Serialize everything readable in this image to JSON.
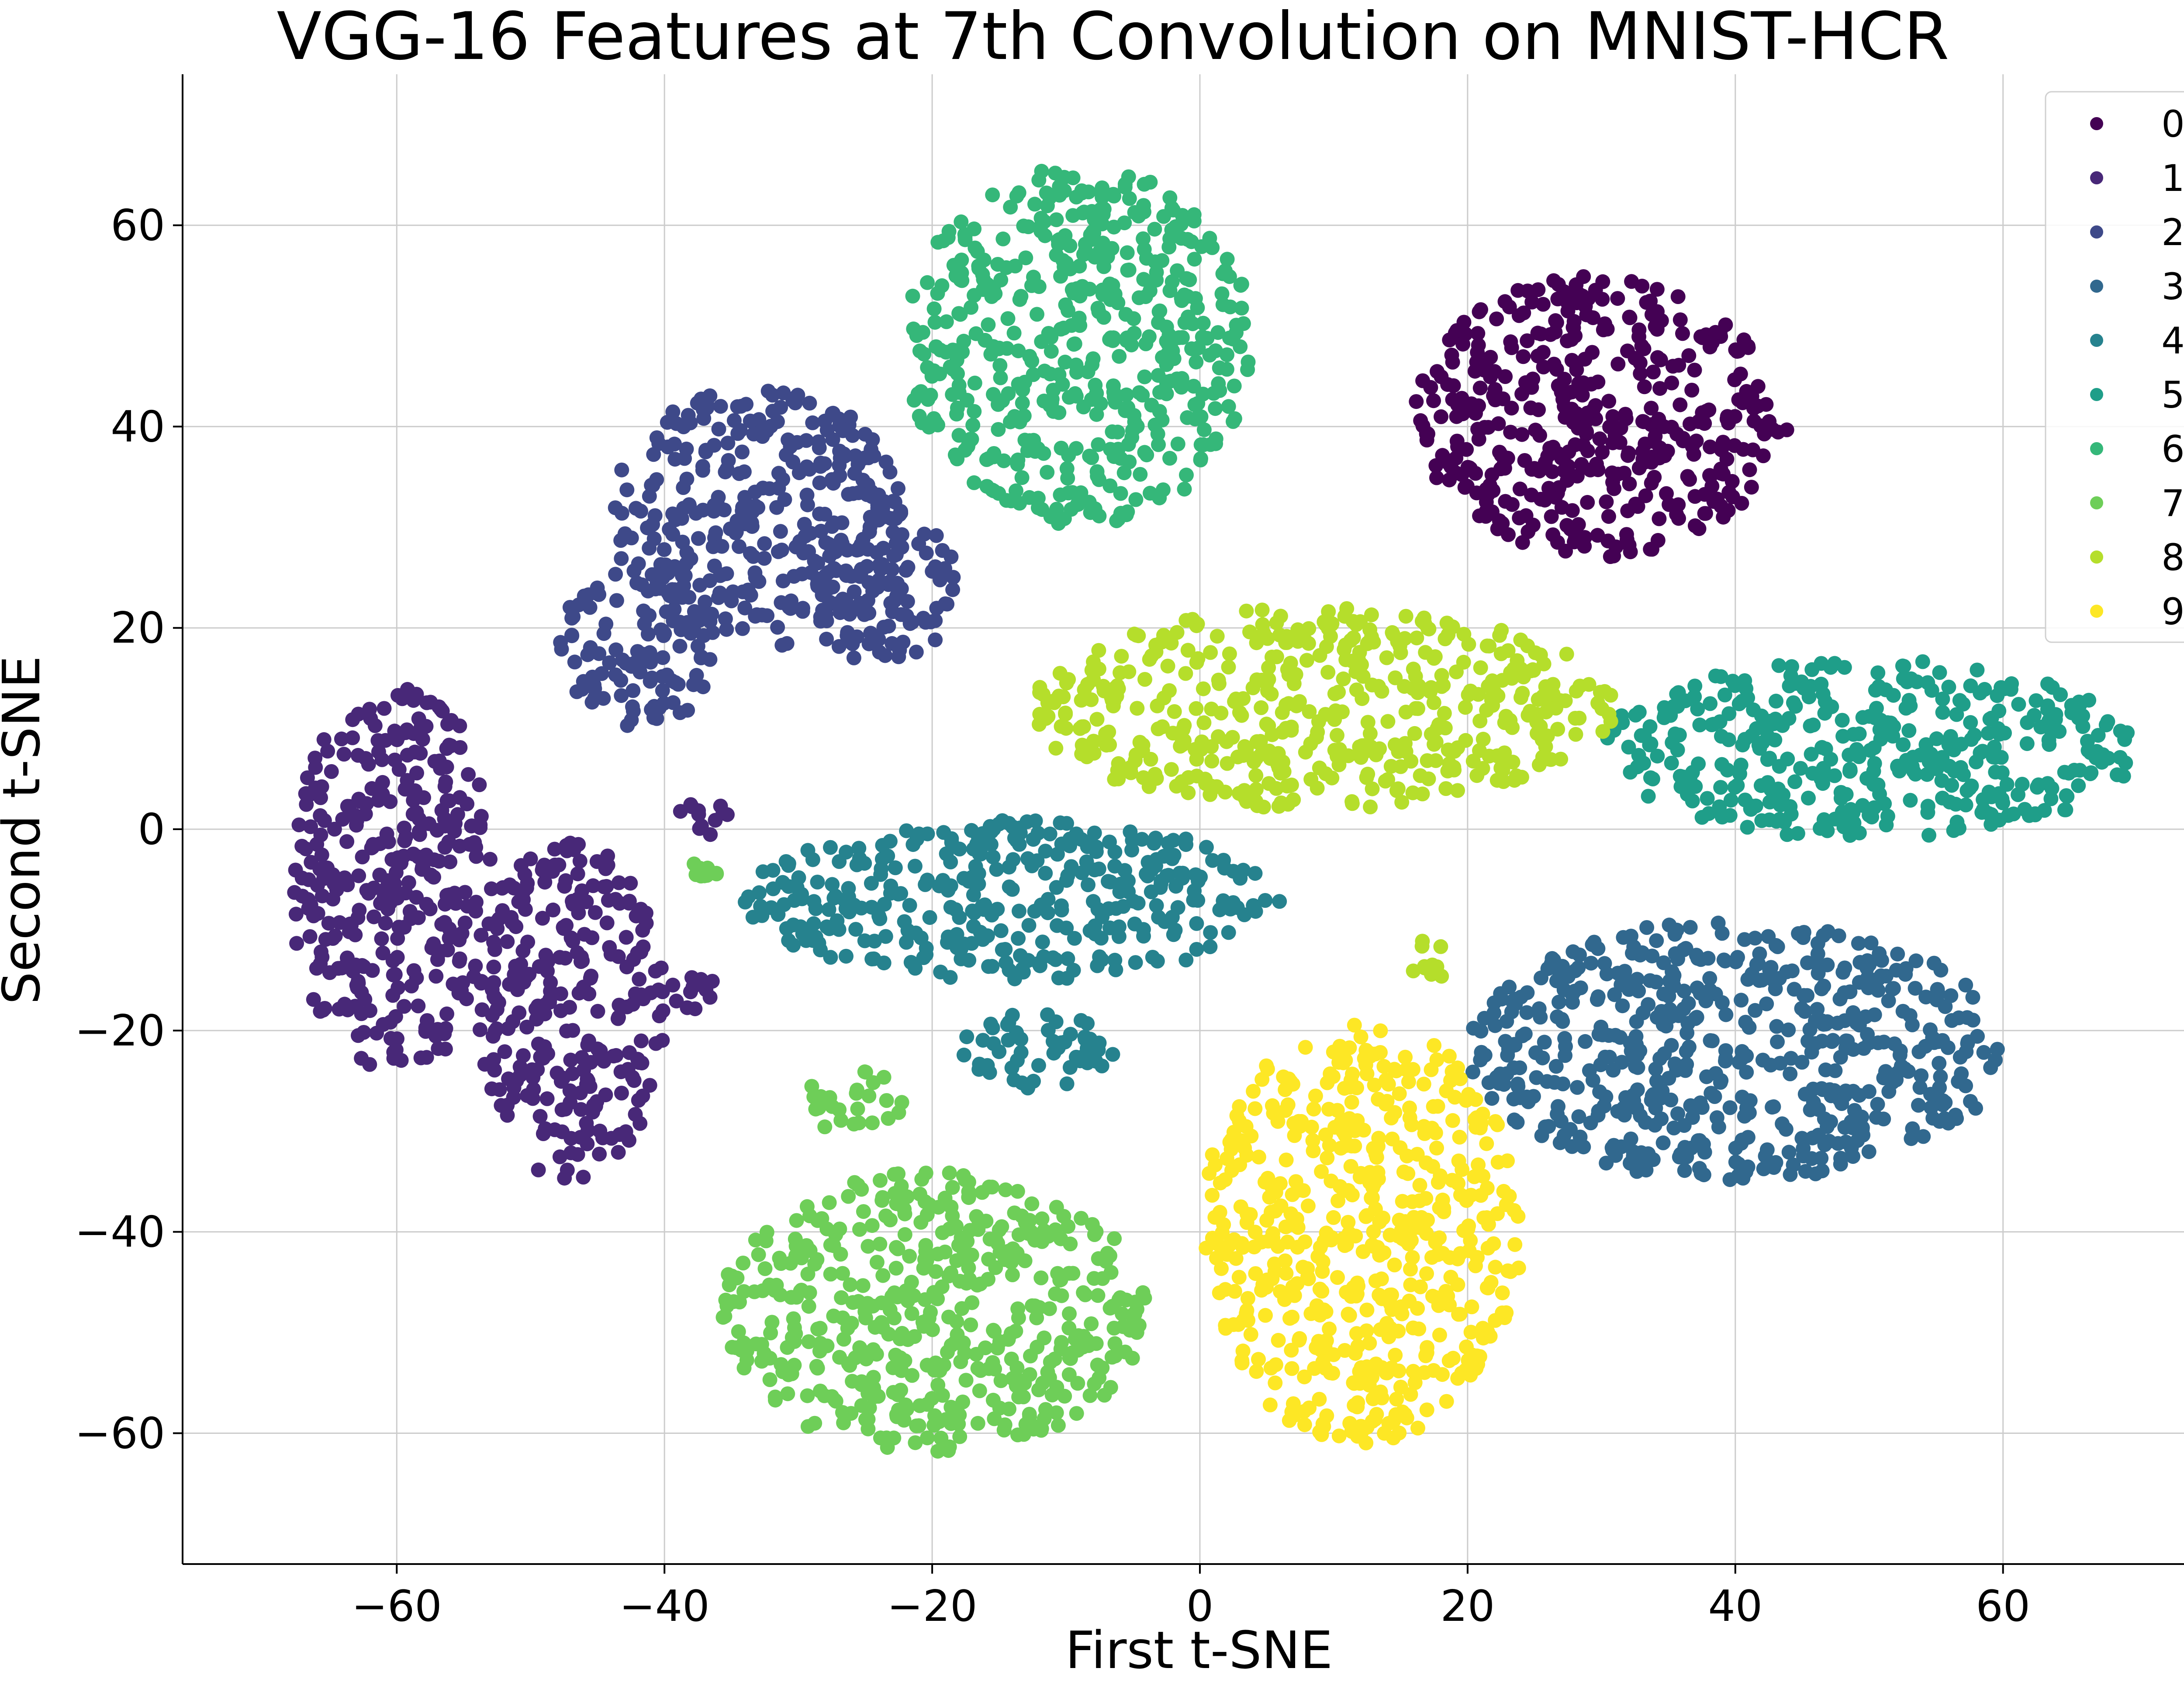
{
  "chart_data": {
    "type": "scatter",
    "title": "VGG-16 Features at 7th Convolution on MNIST-HCR",
    "xlabel": "First t-SNE",
    "ylabel": "Second t-SNE",
    "xlim": [
      -76,
      76
    ],
    "ylim": [
      -73,
      75
    ],
    "xticks": [
      -60,
      -40,
      -20,
      0,
      20,
      40,
      60
    ],
    "yticks": [
      -60,
      -40,
      -20,
      0,
      20,
      40,
      60
    ],
    "xtick_labels": [
      "−60",
      "−40",
      "−20",
      "0",
      "20",
      "40",
      "60"
    ],
    "ytick_labels": [
      "−60",
      "−40",
      "−20",
      "0",
      "20",
      "40",
      "60"
    ],
    "grid": true,
    "legend_position": "top-right",
    "colormap": "viridis",
    "series": [
      {
        "name": "0",
        "color": "#440154",
        "clusters": [
          {
            "cx": 30,
            "cy": 41,
            "rx": 14,
            "ry": 14
          }
        ]
      },
      {
        "name": "1",
        "color": "#482878",
        "clusters": [
          {
            "cx": -60,
            "cy": -5,
            "rx": 8,
            "ry": 19
          },
          {
            "cx": -47,
            "cy": -18,
            "rx": 7,
            "ry": 17
          },
          {
            "cx": -37,
            "cy": 1,
            "rx": 2,
            "ry": 2
          },
          {
            "cx": -38,
            "cy": -16,
            "rx": 2,
            "ry": 2
          }
        ]
      },
      {
        "name": "2",
        "color": "#3e4989",
        "clusters": [
          {
            "cx": -33,
            "cy": 31,
            "rx": 11,
            "ry": 13
          },
          {
            "cx": -42,
            "cy": 18,
            "rx": 6,
            "ry": 8
          },
          {
            "cx": -24,
            "cy": 24,
            "rx": 6,
            "ry": 8
          }
        ]
      },
      {
        "name": "3",
        "color": "#31688e",
        "clusters": [
          {
            "cx": 40,
            "cy": -22,
            "rx": 20,
            "ry": 13
          }
        ]
      },
      {
        "name": "4",
        "color": "#26828e",
        "clusters": [
          {
            "cx": -14,
            "cy": -7,
            "rx": 20,
            "ry": 8
          },
          {
            "cx": -12,
            "cy": -22,
            "rx": 6,
            "ry": 4
          }
        ]
      },
      {
        "name": "5",
        "color": "#1f9e89",
        "clusters": [
          {
            "cx": 50,
            "cy": 8,
            "rx": 20,
            "ry": 9
          }
        ]
      },
      {
        "name": "6",
        "color": "#35b779",
        "clusters": [
          {
            "cx": -9,
            "cy": 48,
            "rx": 13,
            "ry": 18
          }
        ]
      },
      {
        "name": "7",
        "color": "#6ece58",
        "clusters": [
          {
            "cx": -20,
            "cy": -48,
            "rx": 16,
            "ry": 14
          },
          {
            "cx": -26,
            "cy": -27,
            "rx": 4,
            "ry": 3
          },
          {
            "cx": -37,
            "cy": -4,
            "rx": 1,
            "ry": 1
          }
        ]
      },
      {
        "name": "8",
        "color": "#b5de2b",
        "clusters": [
          {
            "cx": 9,
            "cy": 12,
            "rx": 22,
            "ry": 10
          },
          {
            "cx": 17,
            "cy": -13,
            "rx": 2,
            "ry": 2
          }
        ]
      },
      {
        "name": "9",
        "color": "#fde725",
        "clusters": [
          {
            "cx": 12,
            "cy": -40,
            "rx": 12,
            "ry": 21
          }
        ]
      }
    ]
  }
}
